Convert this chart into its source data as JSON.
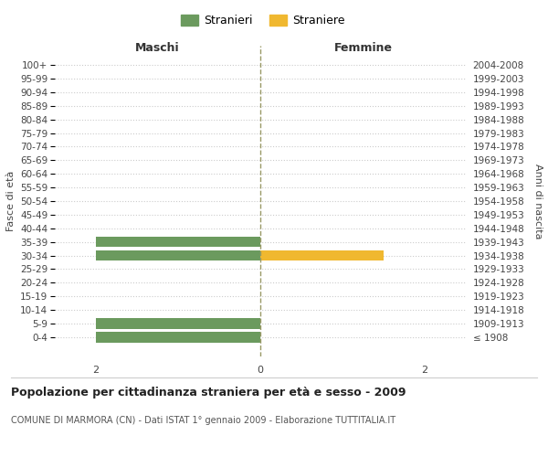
{
  "age_groups": [
    "100+",
    "95-99",
    "90-94",
    "85-89",
    "80-84",
    "75-79",
    "70-74",
    "65-69",
    "60-64",
    "55-59",
    "50-54",
    "45-49",
    "40-44",
    "35-39",
    "30-34",
    "25-29",
    "20-24",
    "15-19",
    "10-14",
    "5-9",
    "0-4"
  ],
  "birth_years": [
    "≤ 1908",
    "1909-1913",
    "1914-1918",
    "1919-1923",
    "1924-1928",
    "1929-1933",
    "1934-1938",
    "1939-1943",
    "1944-1948",
    "1949-1953",
    "1954-1958",
    "1959-1963",
    "1964-1968",
    "1969-1973",
    "1974-1978",
    "1979-1983",
    "1984-1988",
    "1989-1993",
    "1994-1998",
    "1999-2003",
    "2004-2008"
  ],
  "males": [
    0,
    0,
    0,
    0,
    0,
    0,
    0,
    0,
    0,
    0,
    0,
    0,
    0,
    2,
    2,
    0,
    0,
    0,
    0,
    2,
    2
  ],
  "females": [
    0,
    0,
    0,
    0,
    0,
    0,
    0,
    0,
    0,
    0,
    0,
    0,
    0,
    0,
    1.5,
    0,
    0,
    0,
    0,
    0,
    0
  ],
  "male_color": "#6b9a5e",
  "female_color": "#f0b830",
  "xlim": [
    -2.5,
    2.5
  ],
  "xticks": [
    -2,
    0,
    2
  ],
  "title": "Popolazione per cittadinanza straniera per età e sesso - 2009",
  "subtitle": "COMUNE DI MARMORA (CN) - Dati ISTAT 1° gennaio 2009 - Elaborazione TUTTITALIA.IT",
  "legend_male": "Stranieri",
  "legend_female": "Straniere",
  "ylabel_left": "Fasce di età",
  "ylabel_right": "Anni di nascita",
  "maschi_label": "Maschi",
  "femmine_label": "Femmine",
  "background_color": "#ffffff",
  "grid_color": "#cccccc",
  "bar_height": 0.75
}
